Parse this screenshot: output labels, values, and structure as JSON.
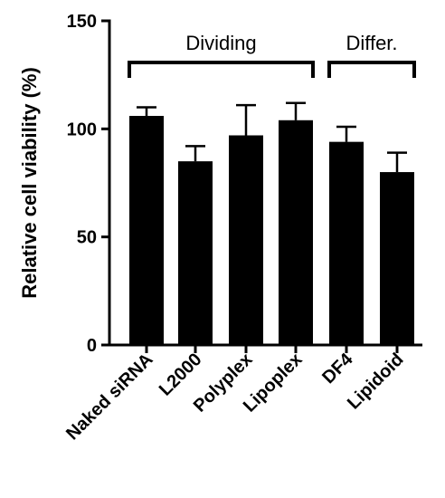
{
  "chart_data": {
    "type": "bar",
    "title": "",
    "xlabel": "",
    "ylabel": "Relative cell viability (%)",
    "ylim": [
      0,
      150
    ],
    "yticks": [
      0,
      50,
      100,
      150
    ],
    "grid": false,
    "color": "#000000",
    "categories": [
      "Naked siRNA",
      "L2000",
      "Polyplex",
      "Lipoplex",
      "DF4",
      "Lipidoid"
    ],
    "series": [
      {
        "values": [
          106,
          85,
          97,
          104,
          94,
          80
        ],
        "error_upper": [
          4,
          7,
          14,
          8,
          7,
          9
        ]
      }
    ],
    "groups": [
      {
        "label": "Dividing",
        "from": 0,
        "to": 3
      },
      {
        "label": "Differ.",
        "from": 4,
        "to": 5
      }
    ]
  }
}
